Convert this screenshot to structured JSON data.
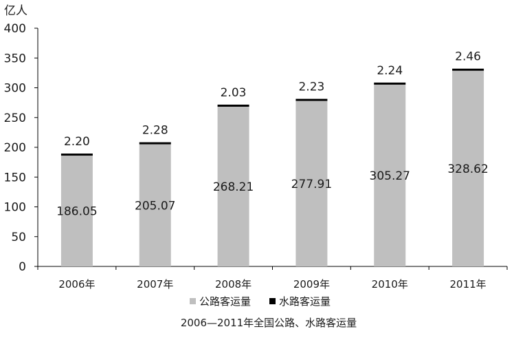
{
  "chart_data": {
    "type": "bar",
    "stacked": true,
    "title": "2006—2011年全国公路、水路客运量",
    "ylabel": "亿人",
    "xlabel": "",
    "categories": [
      "2006年",
      "2007年",
      "2008年",
      "2009年",
      "2010年",
      "2011年"
    ],
    "ylim": [
      0,
      400
    ],
    "yticks": [
      0,
      50,
      100,
      150,
      200,
      250,
      300,
      350,
      400
    ],
    "grid": false,
    "legend_position": "bottom",
    "series": [
      {
        "name": "公路客运量",
        "color": "#bfbfbf",
        "values": [
          186.05,
          205.07,
          268.21,
          277.91,
          305.27,
          328.62
        ],
        "labels": [
          "186.05",
          "205.07",
          "268.21",
          "277.91",
          "305.27",
          "328.62"
        ]
      },
      {
        "name": "水路客运量",
        "color": "#000000",
        "values": [
          2.2,
          2.28,
          2.03,
          2.23,
          2.24,
          2.46
        ],
        "labels": [
          "2.20",
          "2.28",
          "2.03",
          "2.23",
          "2.24",
          "2.46"
        ]
      }
    ]
  }
}
